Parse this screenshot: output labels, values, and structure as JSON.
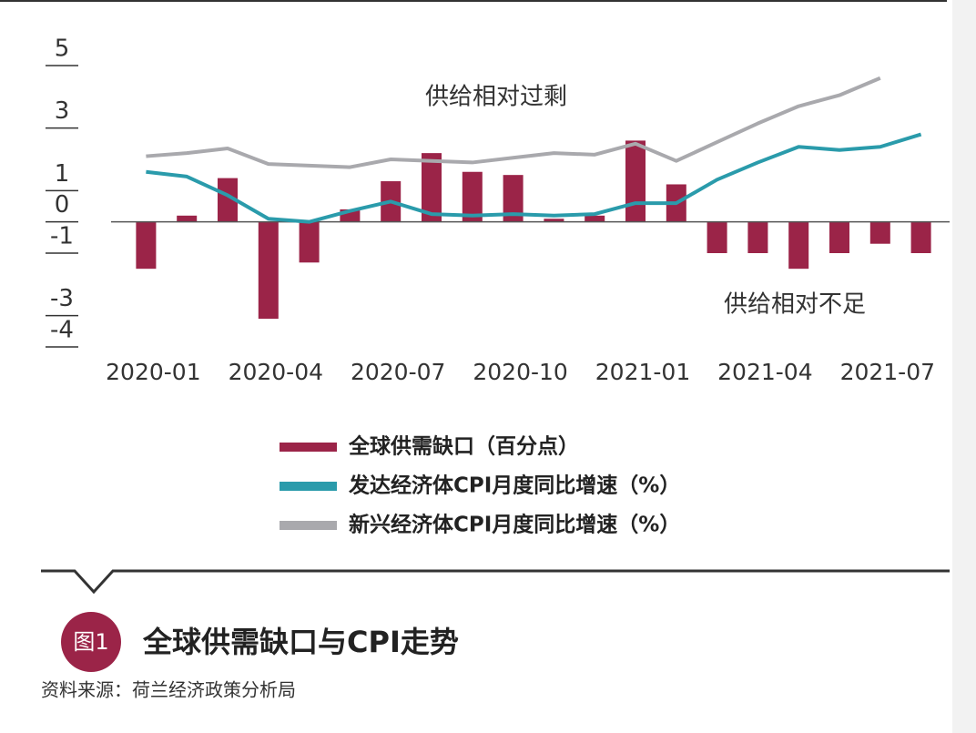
{
  "chart_data": {
    "type": "bar_line",
    "categories": [
      "2020-01",
      null,
      null,
      "2020-04",
      null,
      null,
      "2020-07",
      null,
      null,
      "2020-10",
      null,
      null,
      "2021-01",
      null,
      null,
      "2021-04",
      null,
      null,
      "2021-07",
      null
    ],
    "series": [
      {
        "name": "全球供需缺口（百分点）",
        "type": "bar",
        "color": "#9b2448",
        "values": [
          -1.5,
          0.2,
          1.4,
          -3.1,
          -1.3,
          0.4,
          1.3,
          2.2,
          1.6,
          1.5,
          0.1,
          0.2,
          2.6,
          1.2,
          -1.0,
          -1.0,
          -1.5,
          -1.0,
          -0.7,
          -1.0
        ]
      },
      {
        "name": "发达经济体CPI月度同比增速（%）",
        "type": "line",
        "color": "#2a9bab",
        "values": [
          1.6,
          1.45,
          0.85,
          0.1,
          0.0,
          0.35,
          0.65,
          0.25,
          0.2,
          0.25,
          0.2,
          0.25,
          0.6,
          0.6,
          1.35,
          1.9,
          2.4,
          2.3,
          2.4,
          2.8
        ]
      },
      {
        "name": "新兴经济体CPI月度同比增速（%）",
        "type": "line",
        "color": "#a9a9ad",
        "values": [
          2.1,
          2.2,
          2.35,
          1.85,
          1.8,
          1.75,
          2.0,
          1.95,
          1.9,
          2.05,
          2.2,
          2.15,
          2.5,
          1.95,
          2.55,
          3.15,
          3.7,
          4.05,
          4.6,
          null
        ]
      }
    ],
    "ylim": [
      -4,
      5
    ],
    "yticks": [
      5,
      3,
      1,
      0,
      -1,
      -3,
      -4
    ],
    "annotations": [
      "供给相对过剩",
      "供给相对不足"
    ],
    "figure_label": "图1",
    "title": "全球供需缺口与CPI走势",
    "source": "资料来源：荷兰经济政策分析局"
  }
}
